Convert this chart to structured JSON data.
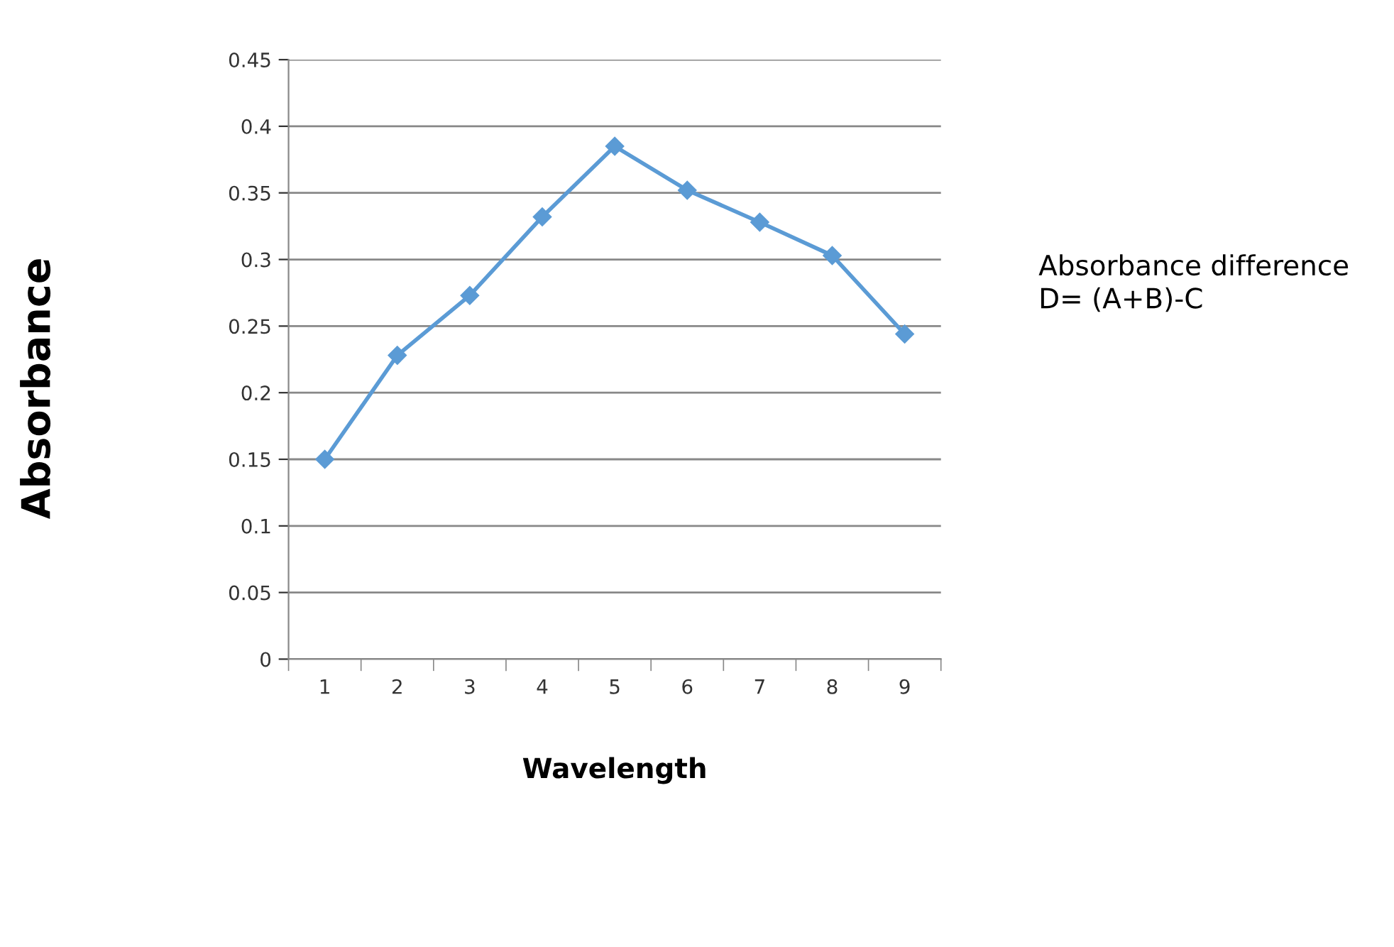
{
  "chart_data": {
    "type": "line",
    "xlabel": "Wavelength",
    "ylabel": "Absorbance",
    "annotations": [
      "Absorbance difference\nD= (A+B)-C"
    ],
    "categories": [
      "1",
      "2",
      "3",
      "4",
      "5",
      "6",
      "7",
      "8",
      "9"
    ],
    "series": [
      {
        "color": "#5b9bd5",
        "values": [
          0.15,
          0.228,
          0.273,
          0.332,
          0.385,
          0.352,
          0.328,
          0.303,
          0.244
        ]
      }
    ],
    "ylim": [
      0,
      0.45
    ],
    "yticks": [
      0,
      0.05,
      0.1,
      0.15,
      0.2,
      0.25,
      0.3,
      0.35,
      0.4,
      0.45
    ],
    "grid": "y",
    "marker": "diamond",
    "line_style": "solid",
    "legend": false
  }
}
